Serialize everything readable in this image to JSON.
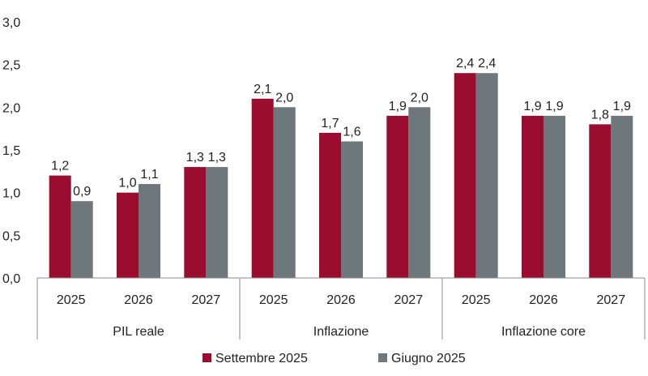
{
  "chart_data": {
    "type": "bar",
    "title": "",
    "xlabel": "",
    "ylabel": "",
    "ylim": [
      0,
      3.0
    ],
    "yticks": [
      "0,0",
      "0,5",
      "1,0",
      "1,5",
      "2,0",
      "2,5",
      "3,0"
    ],
    "groups": [
      {
        "name": "PIL reale",
        "categories": [
          "2025",
          "2026",
          "2027"
        ]
      },
      {
        "name": "Inflazione",
        "categories": [
          "2025",
          "2026",
          "2027"
        ]
      },
      {
        "name": "Inflazione core",
        "categories": [
          "2025",
          "2026",
          "2027"
        ]
      }
    ],
    "series": [
      {
        "name": "Settembre 2025",
        "color": "#9b0d2f",
        "values": [
          1.2,
          1.0,
          1.3,
          2.1,
          1.7,
          1.9,
          2.4,
          1.9,
          1.8
        ],
        "labels": [
          "1,2",
          "1,0",
          "1,3",
          "2,1",
          "1,7",
          "1,9",
          "2,4",
          "1,9",
          "1,8"
        ]
      },
      {
        "name": "Giugno 2025",
        "color": "#6e777b",
        "values": [
          0.9,
          1.1,
          1.3,
          2.0,
          1.6,
          2.0,
          2.4,
          1.9,
          1.9
        ],
        "labels": [
          "0,9",
          "1,1",
          "1,3",
          "2,0",
          "1,6",
          "2,0",
          "2,4",
          "1,9",
          "1,9"
        ]
      }
    ],
    "grid": false,
    "legend": "bottom-center"
  }
}
